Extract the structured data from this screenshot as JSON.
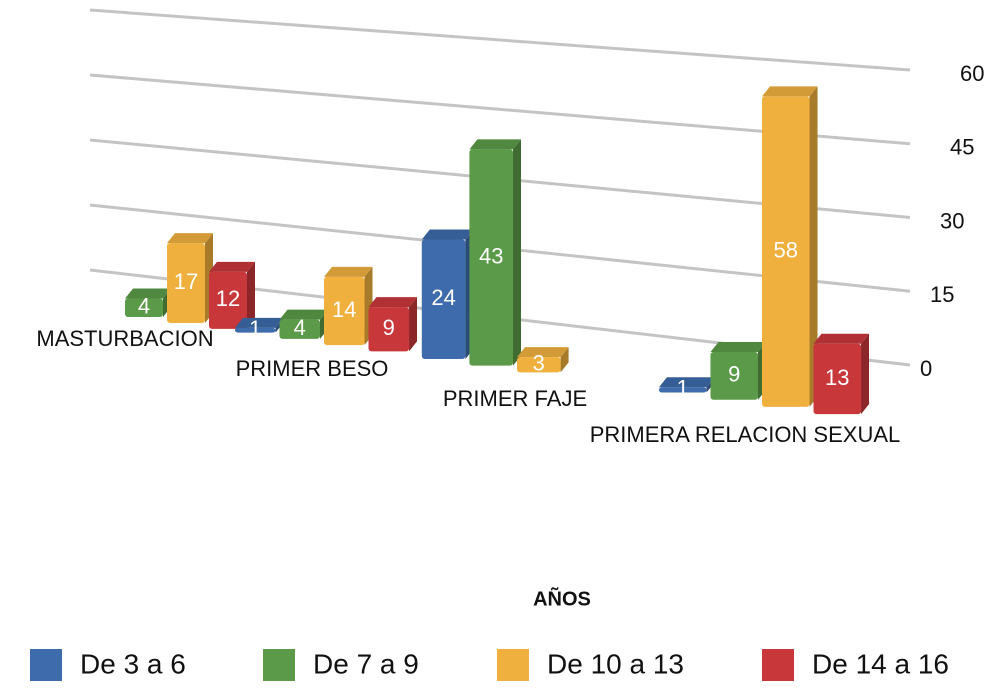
{
  "chart_data": {
    "type": "bar3d",
    "categories": [
      "MASTURBACION",
      "PRIMER BESO",
      "PRIMER FAJE",
      "PRIMERA RELACION SEXUAL"
    ],
    "series": [
      {
        "name": "De 3 a 6",
        "color": "#3d6bab",
        "values": [
          null,
          1,
          24,
          1
        ]
      },
      {
        "name": "De 7 a 9",
        "color": "#5b9a48",
        "values": [
          4,
          4,
          43,
          9
        ]
      },
      {
        "name": "De 10 a 13",
        "color": "#f0b03e",
        "values": [
          17,
          14,
          3,
          58
        ]
      },
      {
        "name": "De 14 a 16",
        "color": "#c8373a",
        "values": [
          12,
          9,
          null,
          13
        ]
      }
    ],
    "x_label": "AÑOS",
    "ylim": [
      0,
      60
    ],
    "yticks": [
      0,
      15,
      30,
      45,
      60
    ],
    "grid": true,
    "legend": "bottom"
  }
}
